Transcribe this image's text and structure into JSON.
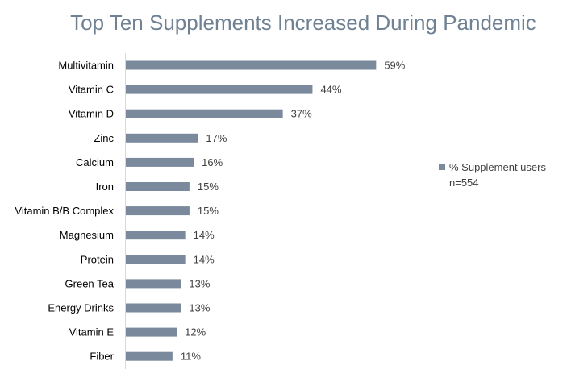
{
  "chart_data": {
    "type": "bar",
    "orientation": "horizontal",
    "title": "Top Ten Supplements Increased During Pandemic",
    "categories": [
      "Multivitamin",
      "Vitamin C",
      "Vitamin D",
      "Zinc",
      "Calcium",
      "Iron",
      "Vitamin B/B Complex",
      "Magnesium",
      "Protein",
      "Green Tea",
      "Energy Drinks",
      "Vitamin E",
      "Fiber"
    ],
    "series": [
      {
        "name": "% Supplement users",
        "values": [
          59,
          44,
          37,
          17,
          16,
          15,
          15,
          14,
          14,
          13,
          13,
          12,
          11
        ],
        "data_labels": [
          "59%",
          "44%",
          "37%",
          "17%",
          "16%",
          "15%",
          "15%",
          "14%",
          "14%",
          "13%",
          "13%",
          "12%",
          "11%"
        ],
        "color": "#7a8a9c"
      }
    ],
    "legend": {
      "placement": "right",
      "entries": [
        "% Supplement users"
      ],
      "note": "n=554"
    },
    "value_unit": "%",
    "xlim": [
      0,
      60
    ],
    "grid": false,
    "colors": {
      "title": "#6f8193",
      "bar": "#7a8a9c",
      "axis": "#d9d9d9"
    }
  }
}
